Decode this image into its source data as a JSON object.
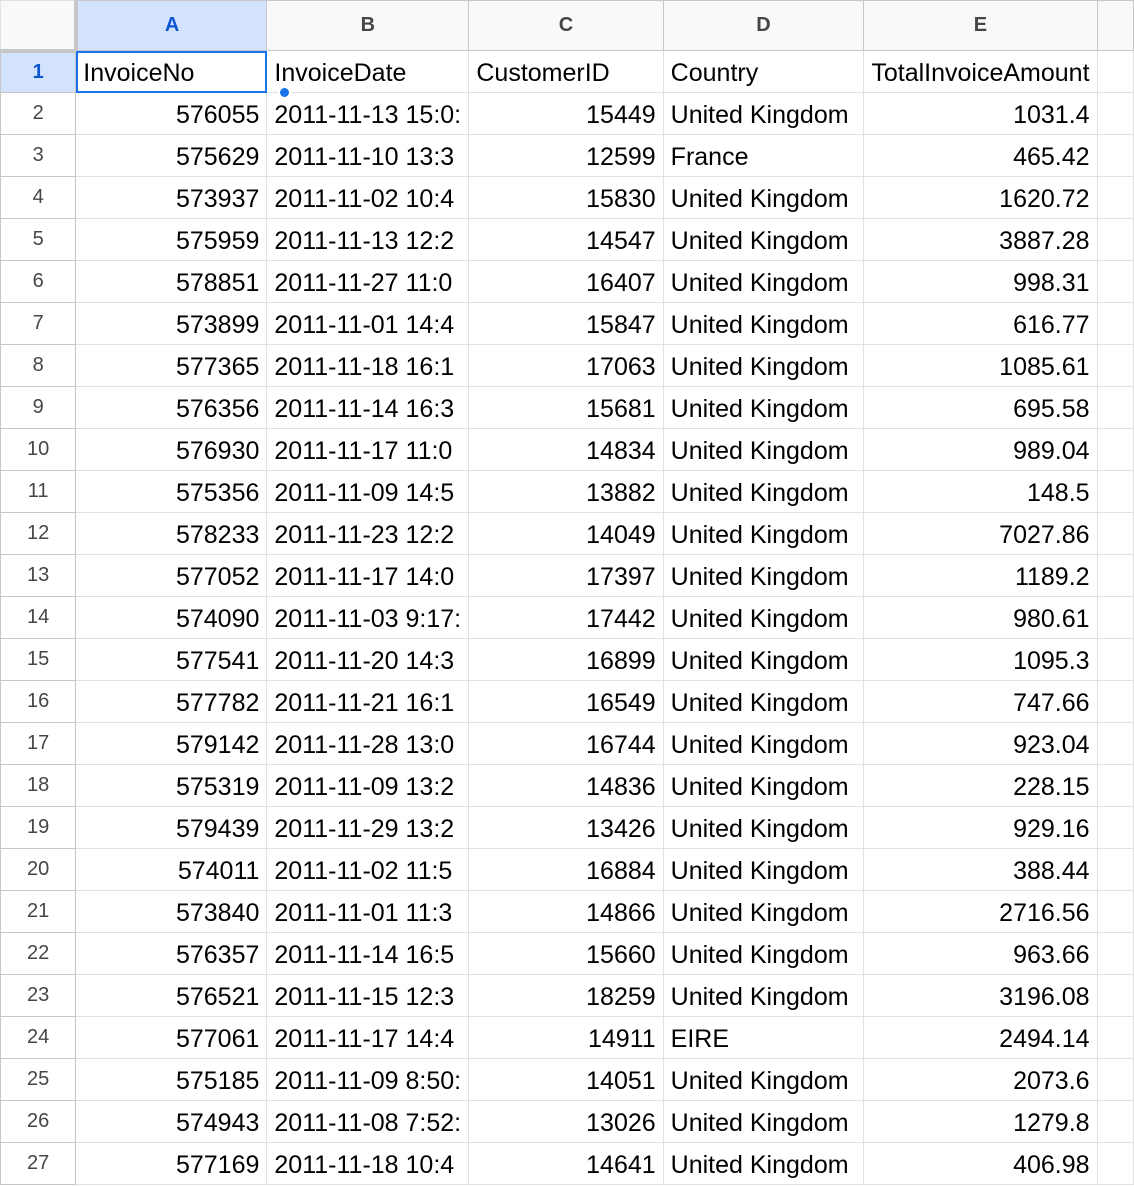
{
  "columns": [
    {
      "letter": "A",
      "selected": true
    },
    {
      "letter": "B",
      "selected": false
    },
    {
      "letter": "C",
      "selected": false
    },
    {
      "letter": "D",
      "selected": false
    },
    {
      "letter": "E",
      "selected": false
    },
    {
      "letter": "",
      "selected": false
    }
  ],
  "active_cell": "A1",
  "rows": [
    {
      "num": "1",
      "cells": [
        "InvoiceNo",
        "InvoiceDate",
        "CustomerID",
        "Country",
        "TotalInvoiceAmount"
      ]
    },
    {
      "num": "2",
      "cells": [
        "576055",
        "2011-11-13 15:0:",
        "15449",
        "United Kingdom",
        "1031.4"
      ]
    },
    {
      "num": "3",
      "cells": [
        "575629",
        "2011-11-10 13:3",
        "12599",
        "France",
        "465.42"
      ]
    },
    {
      "num": "4",
      "cells": [
        "573937",
        "2011-11-02 10:4",
        "15830",
        "United Kingdom",
        "1620.72"
      ]
    },
    {
      "num": "5",
      "cells": [
        "575959",
        "2011-11-13 12:2",
        "14547",
        "United Kingdom",
        "3887.28"
      ]
    },
    {
      "num": "6",
      "cells": [
        "578851",
        "2011-11-27 11:0",
        "16407",
        "United Kingdom",
        "998.31"
      ]
    },
    {
      "num": "7",
      "cells": [
        "573899",
        "2011-11-01 14:4",
        "15847",
        "United Kingdom",
        "616.77"
      ]
    },
    {
      "num": "8",
      "cells": [
        "577365",
        "2011-11-18 16:1",
        "17063",
        "United Kingdom",
        "1085.61"
      ]
    },
    {
      "num": "9",
      "cells": [
        "576356",
        "2011-11-14 16:3",
        "15681",
        "United Kingdom",
        "695.58"
      ]
    },
    {
      "num": "10",
      "cells": [
        "576930",
        "2011-11-17 11:0",
        "14834",
        "United Kingdom",
        "989.04"
      ]
    },
    {
      "num": "11",
      "cells": [
        "575356",
        "2011-11-09 14:5",
        "13882",
        "United Kingdom",
        "148.5"
      ]
    },
    {
      "num": "12",
      "cells": [
        "578233",
        "2011-11-23 12:2",
        "14049",
        "United Kingdom",
        "7027.86"
      ]
    },
    {
      "num": "13",
      "cells": [
        "577052",
        "2011-11-17 14:0",
        "17397",
        "United Kingdom",
        "1189.2"
      ]
    },
    {
      "num": "14",
      "cells": [
        "574090",
        "2011-11-03 9:17:",
        "17442",
        "United Kingdom",
        "980.61"
      ]
    },
    {
      "num": "15",
      "cells": [
        "577541",
        "2011-11-20 14:3",
        "16899",
        "United Kingdom",
        "1095.3"
      ]
    },
    {
      "num": "16",
      "cells": [
        "577782",
        "2011-11-21 16:1",
        "16549",
        "United Kingdom",
        "747.66"
      ]
    },
    {
      "num": "17",
      "cells": [
        "579142",
        "2011-11-28 13:0",
        "16744",
        "United Kingdom",
        "923.04"
      ]
    },
    {
      "num": "18",
      "cells": [
        "575319",
        "2011-11-09 13:2",
        "14836",
        "United Kingdom",
        "228.15"
      ]
    },
    {
      "num": "19",
      "cells": [
        "579439",
        "2011-11-29 13:2",
        "13426",
        "United Kingdom",
        "929.16"
      ]
    },
    {
      "num": "20",
      "cells": [
        "574011",
        "2011-11-02 11:5",
        "16884",
        "United Kingdom",
        "388.44"
      ]
    },
    {
      "num": "21",
      "cells": [
        "573840",
        "2011-11-01 11:3",
        "14866",
        "United Kingdom",
        "2716.56"
      ]
    },
    {
      "num": "22",
      "cells": [
        "576357",
        "2011-11-14 16:5",
        "15660",
        "United Kingdom",
        "963.66"
      ]
    },
    {
      "num": "23",
      "cells": [
        "576521",
        "2011-11-15 12:3",
        "18259",
        "United Kingdom",
        "3196.08"
      ]
    },
    {
      "num": "24",
      "cells": [
        "577061",
        "2011-11-17 14:4",
        "14911",
        "EIRE",
        "2494.14"
      ]
    },
    {
      "num": "25",
      "cells": [
        "575185",
        "2011-11-09 8:50:",
        "14051",
        "United Kingdom",
        "2073.6"
      ]
    },
    {
      "num": "26",
      "cells": [
        "574943",
        "2011-11-08 7:52:",
        "13026",
        "United Kingdom",
        "1279.8"
      ]
    },
    {
      "num": "27",
      "cells": [
        "577169",
        "2011-11-18 10:4",
        "14641",
        "United Kingdom",
        "406.98"
      ]
    }
  ],
  "colors": {
    "selection_accent": "#1a73e8",
    "selected_header_bg": "#d3e3fd",
    "header_bg": "#f8f9fa"
  }
}
